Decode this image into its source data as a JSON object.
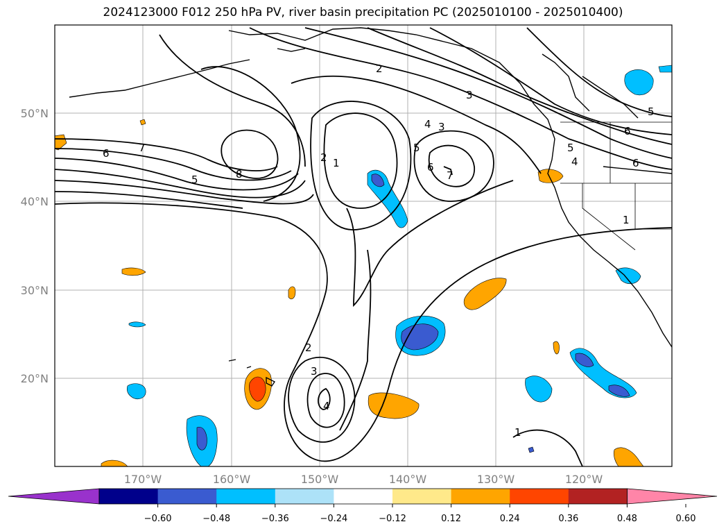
{
  "title": "2024123000 F012 250 hPa PV, river basin precipitation PC (2025010100 - 2025010400)",
  "lat_labels": [
    "50°N",
    "40°N",
    "30°N",
    "20°N"
  ],
  "lon_labels": [
    "170°W",
    "160°W",
    "150°W",
    "140°W",
    "130°W",
    "120°W"
  ],
  "colorbar": {
    "colors": [
      "#9932cc",
      "#00008b",
      "#3a5bd0",
      "#00bfff",
      "#ade2f8",
      "#ffffff",
      "#ffe98a",
      "#ffa500",
      "#ff4500",
      "#b22222",
      "#ff85a8"
    ],
    "tick_labels": [
      "−0.60",
      "−0.48",
      "−0.36",
      "−0.24",
      "−0.12",
      "0.12",
      "0.24",
      "0.36",
      "0.48",
      "0.60"
    ]
  },
  "contour_labels": [
    "6",
    "7",
    "5",
    "8",
    "2",
    "1",
    "2",
    "3",
    "4",
    "5",
    "6",
    "7",
    "3",
    "4",
    "5",
    "6",
    "6",
    "5",
    "1",
    "2",
    "3",
    "4",
    "1"
  ],
  "gridlines": true
}
